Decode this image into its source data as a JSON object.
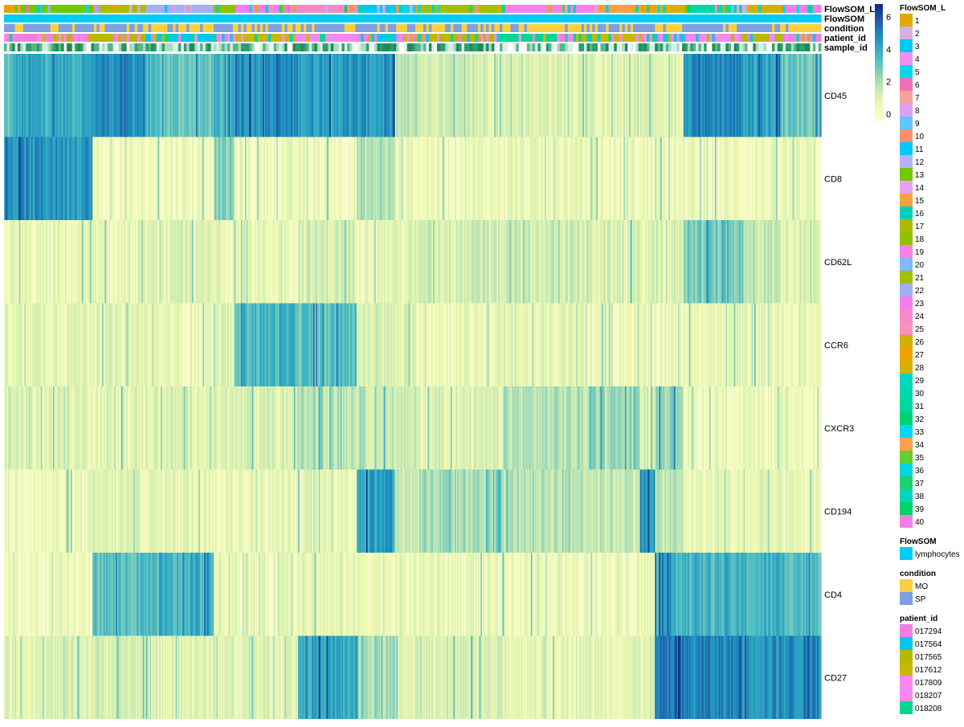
{
  "chart_data": {
    "type": "heatmap",
    "annotation_tracks": [
      "FlowSOM_L",
      "FlowSOM",
      "condition",
      "patient_id",
      "sample_id"
    ],
    "markers": [
      "CD45",
      "CD8",
      "CD62L",
      "CCR6",
      "CXCR3",
      "CD194",
      "CD4",
      "CD27"
    ],
    "color_scale": {
      "ticks": [
        "6",
        "4",
        "2",
        "0"
      ],
      "tick_values": [
        6,
        4,
        2,
        0
      ],
      "range": [
        -0.5,
        6.8
      ],
      "stops": [
        "#FFFFD9",
        "#EDF8B1",
        "#C7E9B4",
        "#7FCDBB",
        "#41B6C4",
        "#1D91C0",
        "#225EA8",
        "#0C2C84"
      ]
    },
    "column_blocks": [
      {
        "span": 0.01,
        "FlowSOM_L": 1,
        "condition": "SP",
        "patient_id": "017809",
        "levels": [
          3.0,
          4.5,
          0.5,
          0.8,
          1.0,
          0.4,
          0.4,
          0.8
        ]
      },
      {
        "span": 0.08,
        "FlowSOM_L": 13,
        "condition": "SP",
        "patient_id": "017294",
        "levels": [
          4.0,
          4.6,
          0.5,
          0.9,
          0.9,
          0.4,
          0.3,
          1.0
        ]
      },
      {
        "span": 0.055,
        "FlowSOM_L": 17,
        "condition": "SP",
        "patient_id": "017565",
        "levels": [
          4.8,
          0.3,
          0.5,
          0.8,
          0.8,
          0.8,
          3.2,
          1.2
        ]
      },
      {
        "span": 0.07,
        "FlowSOM_L": 22,
        "condition": "MO",
        "patient_id": "017564",
        "levels": [
          3.0,
          0.4,
          0.8,
          0.5,
          1.0,
          0.7,
          3.5,
          0.8
        ]
      },
      {
        "span": 0.02,
        "FlowSOM_L": 18,
        "condition": "SP",
        "patient_id": "017809",
        "levels": [
          3.5,
          2.5,
          0.6,
          0.6,
          0.8,
          0.5,
          0.6,
          0.8
        ]
      },
      {
        "span": 0.065,
        "FlowSOM_L": 23,
        "condition": "MO",
        "patient_id": "017612",
        "levels": [
          4.7,
          0.4,
          0.6,
          3.6,
          1.0,
          0.5,
          0.5,
          0.9
        ]
      },
      {
        "span": 0.06,
        "FlowSOM_L": 24,
        "condition": "SP",
        "patient_id": "018207",
        "levels": [
          4.4,
          0.4,
          1.2,
          3.2,
          1.8,
          0.6,
          0.6,
          4.0
        ]
      },
      {
        "span": 0.04,
        "FlowSOM_L": 3,
        "condition": "SP",
        "patient_id": "017564",
        "levels": [
          4.4,
          1.8,
          0.8,
          1.0,
          1.5,
          4.2,
          0.6,
          2.0
        ]
      },
      {
        "span": 0.025,
        "FlowSOM_L": 5,
        "condition": "MO",
        "patient_id": "017294",
        "levels": [
          1.6,
          0.5,
          0.8,
          0.8,
          1.2,
          1.5,
          0.6,
          1.0
        ]
      },
      {
        "span": 0.085,
        "FlowSOM_L": 21,
        "condition": "SP",
        "patient_id": "017565",
        "levels": [
          1.2,
          0.5,
          1.2,
          0.5,
          0.9,
          2.0,
          0.5,
          1.0
        ]
      },
      {
        "span": 0.09,
        "FlowSOM_L": 19,
        "condition": "MO",
        "patient_id": "018208",
        "levels": [
          1.0,
          0.5,
          1.3,
          0.6,
          1.8,
          1.8,
          0.4,
          0.8
        ]
      },
      {
        "span": 0.05,
        "FlowSOM_L": 15,
        "condition": "SP",
        "patient_id": "017612",
        "levels": [
          0.8,
          0.4,
          1.0,
          0.5,
          2.2,
          1.6,
          0.5,
          0.8
        ]
      },
      {
        "span": 0.015,
        "FlowSOM_L": 27,
        "condition": "SP",
        "patient_id": "017809",
        "levels": [
          1.0,
          0.4,
          0.8,
          0.5,
          1.2,
          4.6,
          0.5,
          1.0
        ]
      },
      {
        "span": 0.03,
        "FlowSOM_L": 28,
        "condition": "MO",
        "patient_id": "017564",
        "levels": [
          0.8,
          0.4,
          1.0,
          0.5,
          2.5,
          1.6,
          4.0,
          5.0
        ]
      },
      {
        "span": 0.06,
        "FlowSOM_L": 31,
        "condition": "SP",
        "patient_id": "018207",
        "levels": [
          4.9,
          0.4,
          2.8,
          0.6,
          0.4,
          0.6,
          3.6,
          4.9
        ]
      },
      {
        "span": 0.04,
        "FlowSOM_L": 26,
        "condition": "SP",
        "patient_id": "017565",
        "levels": [
          4.2,
          0.4,
          1.5,
          0.6,
          0.4,
          0.6,
          3.6,
          4.7
        ]
      },
      {
        "span": 0.04,
        "FlowSOM_L": 40,
        "condition": "MO",
        "patient_id": "017294",
        "levels": [
          3.0,
          0.4,
          0.9,
          0.5,
          0.4,
          0.5,
          3.5,
          4.8
        ]
      }
    ],
    "legends": [
      {
        "title": "FlowSOM_L",
        "items": [
          {
            "label": "1",
            "color": "#E0A800"
          },
          {
            "label": "2",
            "color": "#D7B0E0"
          },
          {
            "label": "3",
            "color": "#00C8F0"
          },
          {
            "label": "4",
            "color": "#F090F0"
          },
          {
            "label": "5",
            "color": "#00D8E8"
          },
          {
            "label": "6",
            "color": "#F070B8"
          },
          {
            "label": "7",
            "color": "#F8A0A0"
          },
          {
            "label": "8",
            "color": "#E0A0F0"
          },
          {
            "label": "9",
            "color": "#60C8F8"
          },
          {
            "label": "10",
            "color": "#F89070"
          },
          {
            "label": "11",
            "color": "#00C8F8"
          },
          {
            "label": "12",
            "color": "#B8B0F8"
          },
          {
            "label": "13",
            "color": "#70C800"
          },
          {
            "label": "14",
            "color": "#E8A0F0"
          },
          {
            "label": "15",
            "color": "#F8A040"
          },
          {
            "label": "16",
            "color": "#00D0B8"
          },
          {
            "label": "17",
            "color": "#B0B800"
          },
          {
            "label": "18",
            "color": "#90C000"
          },
          {
            "label": "19",
            "color": "#F880E8"
          },
          {
            "label": "20",
            "color": "#80B8F8"
          },
          {
            "label": "21",
            "color": "#A0C000"
          },
          {
            "label": "22",
            "color": "#A0B0F0"
          },
          {
            "label": "23",
            "color": "#F080F0"
          },
          {
            "label": "24",
            "color": "#F888C8"
          },
          {
            "label": "25",
            "color": "#F890C0"
          },
          {
            "label": "26",
            "color": "#D0B000"
          },
          {
            "label": "27",
            "color": "#F0A000"
          },
          {
            "label": "28",
            "color": "#D8B000"
          },
          {
            "label": "29",
            "color": "#00D8C0"
          },
          {
            "label": "30",
            "color": "#00D8A8"
          },
          {
            "label": "31",
            "color": "#00D8A0"
          },
          {
            "label": "32",
            "color": "#00D070"
          },
          {
            "label": "33",
            "color": "#00D8F8"
          },
          {
            "label": "34",
            "color": "#F8A050"
          },
          {
            "label": "35",
            "color": "#60D030"
          },
          {
            "label": "36",
            "color": "#00D8E0"
          },
          {
            "label": "37",
            "color": "#20D070"
          },
          {
            "label": "38",
            "color": "#00D8B8"
          },
          {
            "label": "39",
            "color": "#00D068"
          },
          {
            "label": "40",
            "color": "#F080E8"
          }
        ]
      },
      {
        "title": "FlowSOM",
        "items": [
          {
            "label": "lymphocytes",
            "color": "#00CCF5"
          }
        ]
      },
      {
        "title": "condition",
        "items": [
          {
            "label": "MO",
            "color": "#F8D040"
          },
          {
            "label": "SP",
            "color": "#7CA0E0"
          }
        ]
      },
      {
        "title": "patient_id",
        "items": [
          {
            "label": "017294",
            "color": "#F080E0"
          },
          {
            "label": "017564",
            "color": "#00C8F0"
          },
          {
            "label": "017565",
            "color": "#B8B800"
          },
          {
            "label": "017612",
            "color": "#C8B800"
          },
          {
            "label": "017809",
            "color": "#F888F0"
          },
          {
            "label": "018207",
            "color": "#F888F0"
          },
          {
            "label": "018208",
            "color": "#00D890"
          }
        ]
      }
    ],
    "sample_id_colors": [
      "#2E9E6E",
      "#D8F0E4",
      "#55B88A",
      "#A8DCC4",
      "#1F8A5C",
      "#FFFFFF"
    ]
  }
}
